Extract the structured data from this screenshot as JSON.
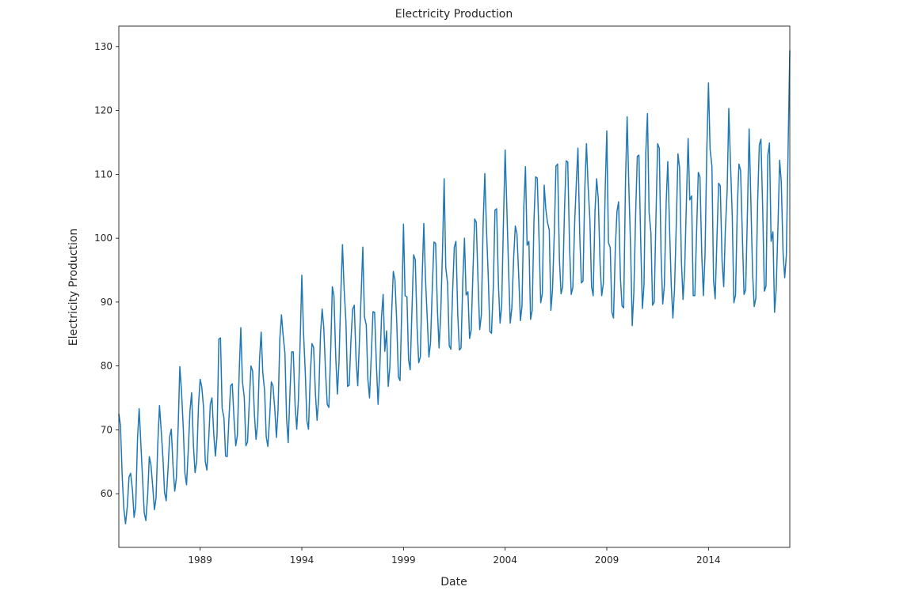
{
  "chart_data": {
    "type": "line",
    "title": "Electricity Production",
    "xlabel": "Date",
    "ylabel": "Electricity Production",
    "color": "#1f77b4",
    "xlim": [
      1985,
      2018
    ],
    "xticks": [
      1989,
      1994,
      1999,
      2004,
      2009,
      2014
    ],
    "ylim": [
      51.6,
      133.2
    ],
    "yticks": [
      60,
      70,
      80,
      90,
      100,
      110,
      120,
      130
    ],
    "x": [
      1985,
      1985.08,
      1985.17,
      1985.25,
      1985.33,
      1985.42,
      1985.5,
      1985.58,
      1985.67,
      1985.75,
      1985.83,
      1985.92,
      1986,
      1986.08,
      1986.17,
      1986.25,
      1986.33,
      1986.42,
      1986.5,
      1986.58,
      1986.67,
      1986.75,
      1986.83,
      1986.92,
      1987,
      1987.08,
      1987.17,
      1987.25,
      1987.33,
      1987.42,
      1987.5,
      1987.58,
      1987.67,
      1987.75,
      1987.83,
      1987.92,
      1988,
      1988.08,
      1988.17,
      1988.25,
      1988.33,
      1988.42,
      1988.5,
      1988.58,
      1988.67,
      1988.75,
      1988.83,
      1988.92,
      1989,
      1989.08,
      1989.17,
      1989.25,
      1989.33,
      1989.42,
      1989.5,
      1989.58,
      1989.67,
      1989.75,
      1989.83,
      1989.92,
      1990,
      1990.08,
      1990.17,
      1990.25,
      1990.33,
      1990.42,
      1990.5,
      1990.58,
      1990.67,
      1990.75,
      1990.83,
      1990.92,
      1991,
      1991.08,
      1991.17,
      1991.25,
      1991.33,
      1991.42,
      1991.5,
      1991.58,
      1991.67,
      1991.75,
      1991.83,
      1991.92,
      1992,
      1992.08,
      1992.17,
      1992.25,
      1992.33,
      1992.42,
      1992.5,
      1992.58,
      1992.67,
      1992.75,
      1992.83,
      1992.92,
      1993,
      1993.08,
      1993.17,
      1993.25,
      1993.33,
      1993.42,
      1993.5,
      1993.58,
      1993.67,
      1993.75,
      1993.83,
      1993.92,
      1994,
      1994.08,
      1994.17,
      1994.25,
      1994.33,
      1994.42,
      1994.5,
      1994.58,
      1994.67,
      1994.75,
      1994.83,
      1994.92,
      1995,
      1995.08,
      1995.17,
      1995.25,
      1995.33,
      1995.42,
      1995.5,
      1995.58,
      1995.67,
      1995.75,
      1995.83,
      1995.92,
      1996,
      1996.08,
      1996.17,
      1996.25,
      1996.33,
      1996.42,
      1996.5,
      1996.58,
      1996.67,
      1996.75,
      1996.83,
      1996.92,
      1997,
      1997.08,
      1997.17,
      1997.25,
      1997.33,
      1997.42,
      1997.5,
      1997.58,
      1997.67,
      1997.75,
      1997.83,
      1997.92,
      1998,
      1998.08,
      1998.17,
      1998.25,
      1998.33,
      1998.42,
      1998.5,
      1998.58,
      1998.67,
      1998.75,
      1998.83,
      1998.92,
      1999,
      1999.08,
      1999.17,
      1999.25,
      1999.33,
      1999.42,
      1999.5,
      1999.58,
      1999.67,
      1999.75,
      1999.83,
      1999.92,
      2000,
      2000.08,
      2000.17,
      2000.25,
      2000.33,
      2000.42,
      2000.5,
      2000.58,
      2000.67,
      2000.75,
      2000.83,
      2000.92,
      2001,
      2001.08,
      2001.17,
      2001.25,
      2001.33,
      2001.42,
      2001.5,
      2001.58,
      2001.67,
      2001.75,
      2001.83,
      2001.92,
      2002,
      2002.08,
      2002.17,
      2002.25,
      2002.33,
      2002.42,
      2002.5,
      2002.58,
      2002.67,
      2002.75,
      2002.83,
      2002.92,
      2003,
      2003.08,
      2003.17,
      2003.25,
      2003.33,
      2003.42,
      2003.5,
      2003.58,
      2003.67,
      2003.75,
      2003.83,
      2003.92,
      2004,
      2004.08,
      2004.17,
      2004.25,
      2004.33,
      2004.42,
      2004.5,
      2004.58,
      2004.67,
      2004.75,
      2004.83,
      2004.92,
      2005,
      2005.08,
      2005.17,
      2005.25,
      2005.33,
      2005.42,
      2005.5,
      2005.58,
      2005.67,
      2005.75,
      2005.83,
      2005.92,
      2006,
      2006.08,
      2006.17,
      2006.25,
      2006.33,
      2006.42,
      2006.5,
      2006.58,
      2006.67,
      2006.75,
      2006.83,
      2006.92,
      2007,
      2007.08,
      2007.17,
      2007.25,
      2007.33,
      2007.42,
      2007.5,
      2007.58,
      2007.67,
      2007.75,
      2007.83,
      2007.92,
      2008,
      2008.08,
      2008.17,
      2008.25,
      2008.33,
      2008.42,
      2008.5,
      2008.58,
      2008.67,
      2008.75,
      2008.83,
      2008.92,
      2009,
      2009.08,
      2009.17,
      2009.25,
      2009.33,
      2009.42,
      2009.5,
      2009.58,
      2009.67,
      2009.75,
      2009.83,
      2009.92,
      2010,
      2010.08,
      2010.17,
      2010.25,
      2010.33,
      2010.42,
      2010.5,
      2010.58,
      2010.67,
      2010.75,
      2010.83,
      2010.92,
      2011,
      2011.08,
      2011.17,
      2011.25,
      2011.33,
      2011.42,
      2011.5,
      2011.58,
      2011.67,
      2011.75,
      2011.83,
      2011.92,
      2012,
      2012.08,
      2012.17,
      2012.25,
      2012.33,
      2012.42,
      2012.5,
      2012.58,
      2012.67,
      2012.75,
      2012.83,
      2012.92,
      2013,
      2013.08,
      2013.17,
      2013.25,
      2013.33,
      2013.42,
      2013.5,
      2013.58,
      2013.67,
      2013.75,
      2013.83,
      2013.92,
      2014,
      2014.08,
      2014.17,
      2014.25,
      2014.33,
      2014.42,
      2014.5,
      2014.58,
      2014.67,
      2014.75,
      2014.83,
      2014.92,
      2015,
      2015.08,
      2015.17,
      2015.25,
      2015.33,
      2015.42,
      2015.5,
      2015.58,
      2015.67,
      2015.75,
      2015.83,
      2015.92,
      2016,
      2016.08,
      2016.17,
      2016.25,
      2016.33,
      2016.42,
      2016.5,
      2016.58,
      2016.67,
      2016.75,
      2016.83,
      2016.92,
      2017,
      2017.08,
      2017.17,
      2017.25,
      2017.33,
      2017.42,
      2017.5,
      2017.58,
      2017.67,
      2017.75,
      2017.83,
      2017.92,
      2018
    ],
    "values": [
      72.5,
      70.7,
      62.5,
      57.5,
      55.3,
      58.1,
      62.6,
      63.2,
      60.6,
      56.3,
      58.0,
      68.7,
      73.3,
      68.0,
      62.2,
      57.0,
      55.8,
      59.9,
      65.8,
      64.5,
      61.0,
      57.5,
      59.3,
      68.1,
      73.8,
      70.1,
      65.6,
      60.2,
      58.9,
      63.9,
      68.9,
      70.1,
      64.1,
      60.4,
      62.5,
      70.6,
      79.9,
      76.2,
      70.3,
      63.2,
      61.4,
      67.1,
      73.0,
      75.8,
      67.5,
      63.3,
      65.1,
      73.9,
      77.9,
      76.7,
      73.4,
      65.1,
      63.7,
      68.5,
      74.0,
      75.0,
      69.3,
      65.9,
      69.1,
      84.2,
      84.4,
      73.4,
      71.9,
      65.9,
      65.8,
      72.0,
      76.9,
      77.2,
      71.5,
      67.5,
      69.1,
      79.0,
      86.0,
      77.5,
      75.1,
      67.5,
      68.1,
      74.6,
      80.0,
      79.2,
      72.3,
      68.5,
      71.2,
      81.0,
      85.3,
      79.0,
      76.1,
      68.9,
      67.4,
      72.0,
      77.5,
      76.9,
      73.3,
      68.8,
      73.0,
      84.3,
      88.0,
      84.8,
      82.0,
      71.9,
      68.0,
      76.1,
      82.2,
      82.2,
      73.8,
      70.1,
      74.6,
      84.0,
      94.2,
      85.5,
      79.0,
      71.4,
      70.1,
      78.9,
      83.5,
      82.9,
      75.6,
      71.5,
      75.0,
      85.0,
      88.9,
      86.0,
      78.9,
      74.0,
      73.5,
      82.3,
      92.4,
      91.0,
      81.3,
      75.6,
      80.7,
      91.5,
      99.0,
      92.1,
      86.9,
      76.8,
      77.0,
      84.2,
      88.9,
      89.5,
      80.9,
      76.9,
      83.6,
      91.3,
      98.6,
      87.7,
      86.4,
      77.9,
      75.0,
      81.9,
      88.5,
      88.4,
      80.0,
      74.0,
      79.1,
      87.7,
      91.2,
      82.3,
      85.5,
      76.8,
      79.8,
      88.5,
      94.8,
      93.5,
      86.8,
      78.3,
      77.7,
      89.5,
      102.2,
      91.0,
      90.8,
      81.0,
      79.4,
      89.0,
      97.4,
      96.6,
      86.0,
      80.5,
      81.4,
      94.0,
      102.3,
      93.8,
      87.4,
      81.4,
      83.6,
      92.5,
      99.4,
      99.2,
      88.7,
      82.8,
      88.0,
      98.0,
      109.3,
      95.4,
      92.9,
      83.2,
      82.6,
      92.0,
      98.6,
      99.5,
      88.0,
      82.5,
      82.8,
      93.5,
      100.0,
      91.1,
      91.6,
      84.3,
      85.6,
      95.0,
      103.0,
      102.5,
      93.0,
      85.7,
      88.0,
      102.5,
      110.1,
      101.6,
      94.0,
      85.4,
      85.1,
      92.5,
      104.4,
      104.6,
      92.7,
      86.7,
      89.5,
      103.0,
      113.8,
      105.2,
      95.0,
      86.7,
      89.1,
      97.0,
      101.9,
      100.7,
      94.0,
      87.1,
      89.4,
      105.0,
      111.2,
      98.9,
      99.5,
      87.3,
      88.7,
      103.0,
      109.6,
      109.4,
      99.6,
      89.9,
      91.4,
      108.3,
      104.6,
      102.5,
      101.3,
      88.7,
      92.0,
      101.0,
      111.3,
      111.6,
      96.6,
      91.3,
      92.4,
      104.5,
      112.1,
      111.9,
      98.5,
      91.2,
      92.3,
      102.5,
      108.6,
      114.1,
      100.4,
      93.0,
      93.3,
      108.0,
      114.8,
      108.2,
      102.8,
      92.4,
      91.0,
      104.3,
      109.3,
      106.2,
      96.0,
      91.0,
      92.9,
      107.4,
      116.8,
      99.3,
      98.5,
      88.4,
      87.5,
      98.5,
      104.2,
      105.7,
      93.7,
      89.4,
      89.1,
      109.0,
      119.0,
      108.5,
      98.6,
      86.3,
      91.5,
      104.0,
      112.8,
      113.0,
      99.2,
      89.0,
      92.7,
      113.5,
      119.5,
      104.0,
      100.8,
      89.5,
      90.0,
      103.6,
      114.8,
      114.1,
      97.3,
      89.7,
      92.5,
      105.6,
      112.0,
      102.3,
      92.6,
      87.5,
      92.0,
      102.5,
      113.2,
      111.0,
      96.3,
      90.4,
      95.0,
      106.3,
      115.6,
      106.0,
      106.6,
      91.0,
      91.0,
      101.5,
      110.3,
      109.6,
      97.5,
      91.0,
      97.3,
      114.0,
      124.3,
      113.9,
      111.3,
      93.4,
      90.5,
      100.3,
      108.6,
      108.2,
      96.4,
      92.4,
      101.3,
      107.5,
      120.3,
      112.0,
      103.5,
      89.9,
      91.1,
      105.0,
      111.6,
      110.6,
      100.0,
      91.2,
      91.9,
      104.5,
      117.1,
      106.5,
      94.5,
      89.3,
      90.6,
      105.8,
      114.6,
      115.5,
      104.2,
      91.7,
      92.5,
      113.0,
      114.9,
      99.5,
      101.0,
      88.4,
      92.0,
      102.1,
      112.2,
      108.9,
      97.6,
      93.8,
      97.3,
      114.7,
      129.4
    ]
  }
}
